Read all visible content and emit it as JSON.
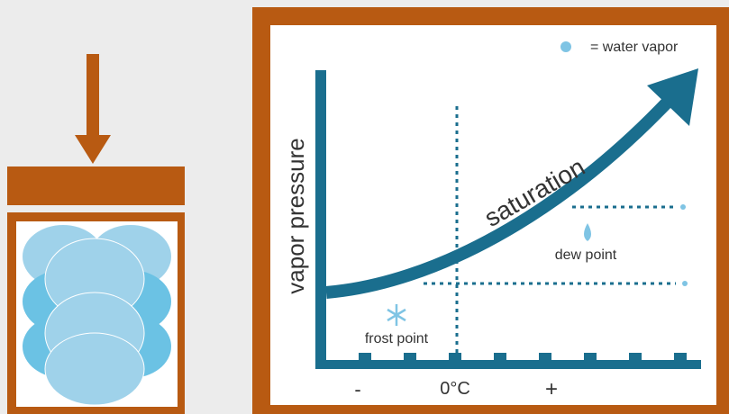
{
  "axis_label": "vapor pressure",
  "curve_label": "saturation",
  "legend": "= water vapor",
  "dew_point": "dew point",
  "frost_point": "frost point",
  "x_labels": [
    "-",
    "0°C",
    "+"
  ]
}
